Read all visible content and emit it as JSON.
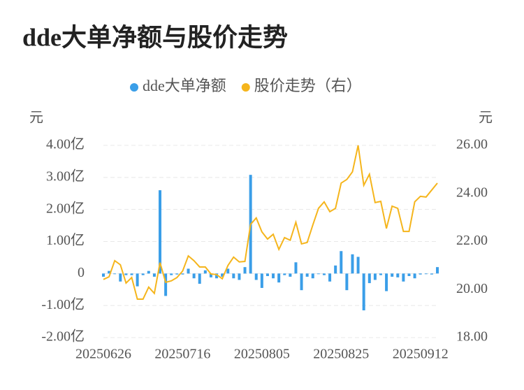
{
  "chart_data": {
    "type": "bar",
    "title": "dde大单净额与股价走势",
    "ylabel": "元",
    "y2label": "元",
    "categories": [
      "20250626",
      null,
      null,
      null,
      null,
      null,
      null,
      null,
      null,
      null,
      null,
      null,
      null,
      null,
      "20250716",
      null,
      null,
      null,
      null,
      null,
      null,
      null,
      null,
      null,
      null,
      null,
      null,
      null,
      "20250805",
      null,
      null,
      null,
      null,
      null,
      null,
      null,
      null,
      null,
      null,
      null,
      null,
      null,
      "20250825",
      null,
      null,
      null,
      null,
      null,
      null,
      null,
      null,
      null,
      null,
      null,
      null,
      null,
      "20250912",
      null,
      null,
      null
    ],
    "series": [
      {
        "name": "dde大单净额",
        "type": "bar",
        "color": "#3a9ee8",
        "values": [
          -0.1,
          0.08,
          -0.02,
          -0.25,
          -0.05,
          -0.05,
          -0.4,
          -0.05,
          0.08,
          -0.1,
          2.6,
          -0.7,
          -0.05,
          -0.03,
          -0.03,
          0.15,
          -0.15,
          -0.32,
          0.1,
          -0.12,
          -0.15,
          -0.1,
          0.15,
          -0.15,
          -0.2,
          0.2,
          3.08,
          -0.2,
          -0.45,
          -0.08,
          -0.15,
          -0.28,
          -0.05,
          -0.1,
          0.35,
          -0.52,
          -0.1,
          -0.15,
          -0.02,
          -0.05,
          -0.25,
          0.25,
          0.7,
          -0.52,
          0.6,
          0.52,
          -1.15,
          -0.3,
          -0.2,
          -0.05,
          -0.55,
          -0.1,
          -0.12,
          -0.25,
          -0.08,
          -0.15,
          -0.03,
          -0.02,
          -0.03,
          0.2
        ]
      },
      {
        "name": "股价走势（右）",
        "type": "line",
        "axis": "y2",
        "color": "#f5b51c",
        "values": [
          20.42,
          20.53,
          21.2,
          21.03,
          20.27,
          20.5,
          19.6,
          19.6,
          20.1,
          19.84,
          21.12,
          20.3,
          20.36,
          20.5,
          20.77,
          21.4,
          21.2,
          20.94,
          20.94,
          20.65,
          20.62,
          20.45,
          21.0,
          21.35,
          21.15,
          21.17,
          22.71,
          22.98,
          22.4,
          22.1,
          22.3,
          21.67,
          22.16,
          22.05,
          22.8,
          21.9,
          21.96,
          22.69,
          23.38,
          23.65,
          23.24,
          23.38,
          24.43,
          24.58,
          24.9,
          26.0,
          24.34,
          24.8,
          23.62,
          23.67,
          22.54,
          23.47,
          23.38,
          22.42,
          22.42,
          23.65,
          23.88,
          23.85,
          24.14,
          24.43
        ]
      }
    ],
    "ylim": [
      -2,
      4
    ],
    "yticks": [
      {
        "value": -2,
        "label": "-2.00亿"
      },
      {
        "value": -1,
        "label": "-1.00亿"
      },
      0,
      {
        "value": 1,
        "label": "1.00亿"
      },
      {
        "value": 2,
        "label": "2.00亿"
      },
      {
        "value": 3,
        "label": "3.00亿"
      },
      {
        "value": 4,
        "label": "4.00亿"
      }
    ],
    "y2lim": [
      18,
      26
    ],
    "y2ticks": [
      {
        "value": 18,
        "label": "18.00"
      },
      {
        "value": 20,
        "label": "20.00"
      },
      {
        "value": 22,
        "label": "22.00"
      },
      {
        "value": 24,
        "label": "24.00"
      },
      {
        "value": 26,
        "label": "26.00"
      }
    ],
    "grid": true
  }
}
